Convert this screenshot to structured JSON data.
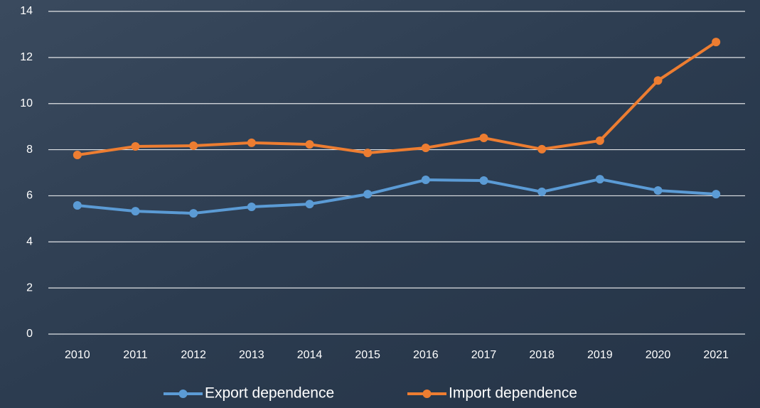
{
  "chart_data": {
    "type": "line",
    "categories": [
      "2010",
      "2011",
      "2012",
      "2013",
      "2014",
      "2015",
      "2016",
      "2017",
      "2018",
      "2019",
      "2020",
      "2021"
    ],
    "series": [
      {
        "name": "Export dependence",
        "color": "#5b9bd5",
        "values": [
          5.58,
          5.33,
          5.24,
          5.52,
          5.64,
          6.07,
          6.69,
          6.66,
          6.17,
          6.72,
          6.23,
          6.07
        ]
      },
      {
        "name": "Import dependence",
        "color": "#ed7d31",
        "values": [
          7.77,
          8.14,
          8.17,
          8.3,
          8.23,
          7.86,
          8.08,
          8.51,
          8.02,
          8.39,
          11.0,
          12.67
        ]
      }
    ],
    "ylim": [
      0,
      14
    ],
    "yticks": [
      0,
      2,
      4,
      6,
      8,
      10,
      12,
      14
    ],
    "grid": true,
    "legend": "bottom"
  }
}
